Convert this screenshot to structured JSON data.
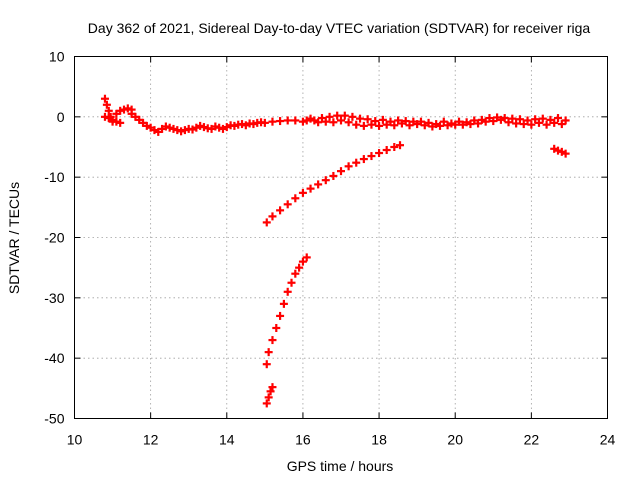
{
  "chart_data": {
    "type": "scatter",
    "title": "Day 362 of 2021, Sidereal Day-to-day VTEC variation (SDTVAR) for receiver riga",
    "xlabel": "GPS time / hours",
    "ylabel": "SDTVAR / TECUs",
    "xlim": [
      10,
      24
    ],
    "ylim": [
      -50,
      10
    ],
    "xticks": [
      10,
      12,
      14,
      16,
      18,
      20,
      22,
      24
    ],
    "yticks": [
      10,
      0,
      -10,
      -20,
      -30,
      -40,
      -50
    ],
    "grid": true,
    "marker": "plus",
    "color": "#ff0000",
    "series": [
      {
        "points": [
          [
            10.8,
            3.0
          ],
          [
            10.85,
            2.0
          ],
          [
            10.9,
            1.0
          ],
          [
            10.95,
            0.0
          ],
          [
            11.0,
            -0.8
          ],
          [
            10.8,
            0.0
          ],
          [
            10.9,
            -0.2
          ],
          [
            11.0,
            -0.5
          ],
          [
            11.1,
            -0.8
          ],
          [
            11.2,
            -1.0
          ],
          [
            11.1,
            0.5
          ],
          [
            11.2,
            1.0
          ],
          [
            11.3,
            1.2
          ],
          [
            11.4,
            1.4
          ],
          [
            11.5,
            1.2
          ],
          [
            11.5,
            0.5
          ],
          [
            11.6,
            0.0
          ],
          [
            11.7,
            -0.5
          ],
          [
            11.8,
            -1.0
          ],
          [
            11.9,
            -1.5
          ],
          [
            12.0,
            -1.8
          ],
          [
            12.1,
            -2.2
          ],
          [
            12.2,
            -2.5
          ],
          [
            12.3,
            -2.0
          ],
          [
            12.4,
            -1.6
          ],
          [
            12.5,
            -1.8
          ],
          [
            12.6,
            -2.0
          ],
          [
            12.7,
            -2.2
          ],
          [
            12.8,
            -2.4
          ],
          [
            12.9,
            -2.2
          ],
          [
            13.0,
            -2.0
          ],
          [
            13.1,
            -2.1
          ],
          [
            13.2,
            -1.8
          ],
          [
            13.3,
            -1.5
          ],
          [
            13.4,
            -1.7
          ],
          [
            13.5,
            -1.9
          ],
          [
            13.6,
            -2.0
          ],
          [
            13.7,
            -1.6
          ],
          [
            13.8,
            -1.8
          ],
          [
            13.9,
            -2.0
          ],
          [
            14.0,
            -1.7
          ],
          [
            14.1,
            -1.4
          ],
          [
            14.2,
            -1.5
          ],
          [
            14.3,
            -1.3
          ],
          [
            14.4,
            -1.2
          ],
          [
            14.5,
            -1.4
          ],
          [
            14.6,
            -1.1
          ],
          [
            14.7,
            -1.2
          ],
          [
            14.8,
            -1.0
          ],
          [
            14.9,
            -0.9
          ],
          [
            15.0,
            -1.0
          ],
          [
            15.2,
            -0.8
          ],
          [
            15.4,
            -0.7
          ],
          [
            15.6,
            -0.6
          ],
          [
            15.8,
            -0.6
          ],
          [
            16.0,
            -0.8
          ],
          [
            16.1,
            -0.6
          ],
          [
            16.2,
            -0.3
          ],
          [
            16.3,
            -0.6
          ],
          [
            16.4,
            -0.9
          ],
          [
            16.5,
            -0.2
          ],
          [
            16.6,
            -0.8
          ],
          [
            16.7,
            0.0
          ],
          [
            16.8,
            -0.9
          ],
          [
            16.9,
            0.2
          ],
          [
            17.0,
            -0.6
          ],
          [
            17.1,
            0.2
          ],
          [
            17.2,
            -0.9
          ],
          [
            17.3,
            0.0
          ],
          [
            17.4,
            -1.3
          ],
          [
            17.5,
            -0.3
          ],
          [
            17.6,
            -1.5
          ],
          [
            17.7,
            -0.4
          ],
          [
            17.8,
            -1.3
          ],
          [
            17.9,
            -0.7
          ],
          [
            18.0,
            -1.5
          ],
          [
            18.1,
            -0.5
          ],
          [
            18.2,
            -1.3
          ],
          [
            18.3,
            -0.8
          ],
          [
            18.4,
            -1.4
          ],
          [
            18.5,
            -0.6
          ],
          [
            18.6,
            -1.1
          ],
          [
            18.7,
            -0.7
          ],
          [
            18.8,
            -1.4
          ],
          [
            18.9,
            -0.8
          ],
          [
            19.0,
            -1.2
          ],
          [
            19.1,
            -0.8
          ],
          [
            19.2,
            -1.4
          ],
          [
            19.3,
            -1.0
          ],
          [
            19.4,
            -1.6
          ],
          [
            19.5,
            -1.2
          ],
          [
            19.6,
            -1.5
          ],
          [
            19.7,
            -0.8
          ],
          [
            19.8,
            -1.4
          ],
          [
            19.9,
            -1.1
          ],
          [
            20.0,
            -1.3
          ],
          [
            20.1,
            -0.8
          ],
          [
            20.2,
            -1.3
          ],
          [
            20.3,
            -0.9
          ],
          [
            20.4,
            -1.2
          ],
          [
            20.5,
            -0.6
          ],
          [
            20.6,
            -1.1
          ],
          [
            20.7,
            -0.5
          ],
          [
            20.8,
            -0.8
          ],
          [
            20.9,
            -0.2
          ],
          [
            21.0,
            -0.7
          ],
          [
            21.1,
            -0.1
          ],
          [
            21.2,
            -0.5
          ],
          [
            21.3,
            -0.2
          ],
          [
            21.4,
            -0.9
          ],
          [
            21.5,
            -0.3
          ],
          [
            21.6,
            -1.1
          ],
          [
            21.7,
            -0.4
          ],
          [
            21.8,
            -1.2
          ],
          [
            21.9,
            -0.6
          ],
          [
            22.0,
            -1.3
          ],
          [
            22.1,
            -0.4
          ],
          [
            22.2,
            -1.0
          ],
          [
            22.3,
            -0.3
          ],
          [
            22.4,
            -1.3
          ],
          [
            22.5,
            -0.5
          ],
          [
            22.6,
            -1.0
          ],
          [
            22.7,
            -0.2
          ],
          [
            22.8,
            -1.2
          ],
          [
            22.9,
            -0.6
          ],
          [
            15.05,
            -17.5
          ],
          [
            15.2,
            -16.5
          ],
          [
            15.4,
            -15.5
          ],
          [
            15.6,
            -14.5
          ],
          [
            15.8,
            -13.5
          ],
          [
            16.0,
            -12.6
          ],
          [
            16.2,
            -11.9
          ],
          [
            16.4,
            -11.2
          ],
          [
            16.6,
            -10.5
          ],
          [
            16.8,
            -9.8
          ],
          [
            17.0,
            -9.0
          ],
          [
            17.2,
            -8.2
          ],
          [
            17.4,
            -7.6
          ],
          [
            17.6,
            -7.0
          ],
          [
            17.8,
            -6.5
          ],
          [
            18.0,
            -6.0
          ],
          [
            18.2,
            -5.5
          ],
          [
            18.4,
            -5.0
          ],
          [
            18.55,
            -4.7
          ],
          [
            15.05,
            -41.0
          ],
          [
            15.1,
            -39.0
          ],
          [
            15.2,
            -37.0
          ],
          [
            15.3,
            -35.0
          ],
          [
            15.4,
            -33.0
          ],
          [
            15.5,
            -31.0
          ],
          [
            15.6,
            -29.0
          ],
          [
            15.7,
            -27.5
          ],
          [
            15.8,
            -26.0
          ],
          [
            15.9,
            -25.0
          ],
          [
            16.0,
            -24.0
          ],
          [
            16.1,
            -23.3
          ],
          [
            15.05,
            -47.5
          ],
          [
            15.1,
            -46.5
          ],
          [
            15.15,
            -45.5
          ],
          [
            15.2,
            -44.8
          ],
          [
            22.6,
            -5.3
          ],
          [
            22.7,
            -5.6
          ],
          [
            22.8,
            -5.8
          ],
          [
            22.9,
            -6.1
          ]
        ]
      }
    ]
  }
}
